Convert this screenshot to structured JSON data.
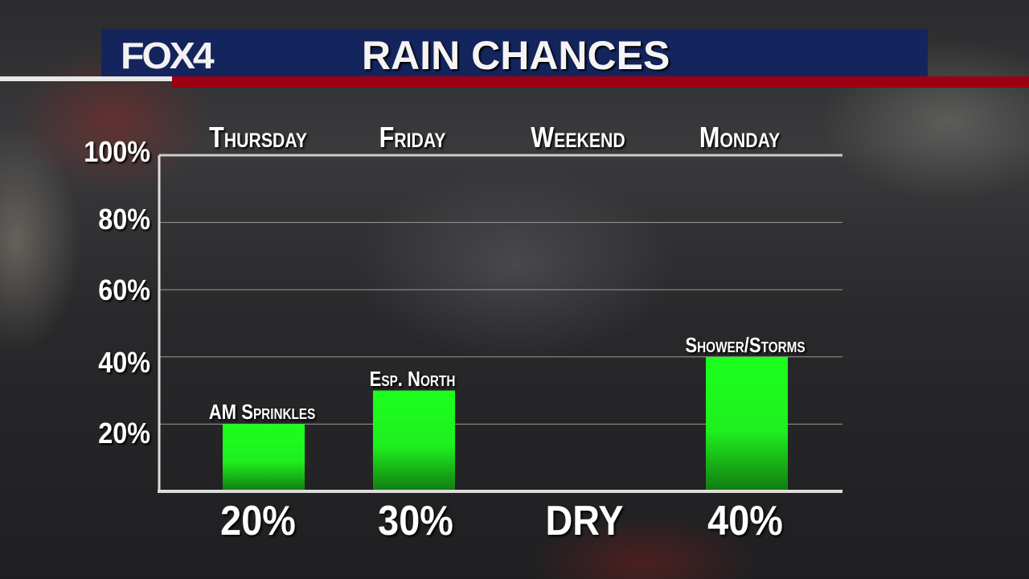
{
  "header": {
    "logo": "FOX4",
    "title": "RAIN CHANCES"
  },
  "colors": {
    "bar": "#1cff1c",
    "header_bg": "#14245c",
    "accent_red": "#9c0012"
  },
  "chart_data": {
    "type": "bar",
    "title": "RAIN CHANCES",
    "categories": [
      "Thursday",
      "Friday",
      "Weekend",
      "Monday"
    ],
    "values": [
      20,
      30,
      0,
      40
    ],
    "bar_labels": [
      "AM Sprinkles",
      "Esp. North",
      "",
      "Shower/Storms"
    ],
    "value_labels": [
      "20%",
      "30%",
      "DRY",
      "40%"
    ],
    "yticks": [
      "100%",
      "80%",
      "60%",
      "40%",
      "20%"
    ],
    "ylim": [
      0,
      100
    ],
    "grid": true
  }
}
